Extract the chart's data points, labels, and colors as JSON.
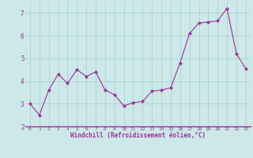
{
  "x": [
    0,
    1,
    2,
    3,
    4,
    5,
    6,
    7,
    8,
    9,
    10,
    11,
    12,
    13,
    14,
    15,
    16,
    17,
    18,
    19,
    20,
    21,
    22,
    23
  ],
  "y": [
    3.0,
    2.5,
    3.6,
    4.3,
    3.9,
    4.5,
    4.2,
    4.4,
    3.6,
    3.4,
    2.9,
    3.05,
    3.1,
    3.55,
    3.6,
    3.7,
    4.8,
    6.1,
    6.55,
    6.6,
    6.65,
    7.2,
    5.2,
    4.55
  ],
  "xlabel": "Windchill (Refroidissement éolien,°C)",
  "ylim": [
    2,
    7.5
  ],
  "xlim": [
    -0.5,
    23.5
  ],
  "yticks": [
    2,
    3,
    4,
    5,
    6,
    7
  ],
  "xticks": [
    0,
    1,
    2,
    3,
    4,
    5,
    6,
    7,
    8,
    9,
    10,
    11,
    12,
    13,
    14,
    15,
    16,
    17,
    18,
    19,
    20,
    21,
    22,
    23
  ],
  "line_color": "#993399",
  "marker": "D",
  "marker_size": 2.2,
  "bg_color": "#cce8e8",
  "grid_color": "#aacccc",
  "label_color": "#993399",
  "tick_color": "#993399",
  "spine_color": "#993399"
}
